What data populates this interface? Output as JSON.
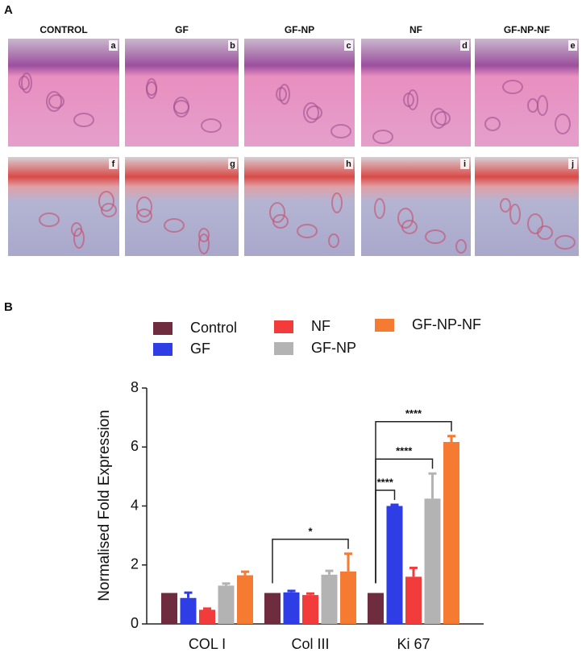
{
  "panel_labels": [
    "A",
    "B"
  ],
  "histology": {
    "columns": [
      "CONTROL",
      "GF",
      "GF-NP",
      "NF",
      "GF-NP-NF"
    ],
    "letters": [
      "a",
      "b",
      "c",
      "d",
      "e",
      "f",
      "g",
      "h",
      "i",
      "j"
    ]
  },
  "chart_data": {
    "type": "bar",
    "categories": [
      "COL I",
      "Col III",
      "Ki 67"
    ],
    "ylabel": "Normalised Fold Expression",
    "ylim": [
      0,
      8
    ],
    "yticks": [
      0,
      2,
      4,
      6,
      8
    ],
    "series": [
      {
        "name": "Control",
        "color": "#6e2c3e",
        "values": [
          1.05,
          1.05,
          1.05
        ]
      },
      {
        "name": "GF",
        "color": "#2e3de6",
        "values": [
          0.88,
          1.07,
          4.0
        ],
        "errors": [
          0.18,
          0.05,
          0.04
        ]
      },
      {
        "name": "NF",
        "color": "#f23c3c",
        "values": [
          0.48,
          0.98,
          1.6
        ],
        "errors": [
          0.04,
          0.05,
          0.3
        ]
      },
      {
        "name": "GF-NP",
        "color": "#b3b3b3",
        "values": [
          1.3,
          1.67,
          4.25
        ],
        "errors": [
          0.07,
          0.13,
          0.85
        ]
      },
      {
        "name": "GF-NP-NF",
        "color": "#f57a32",
        "values": [
          1.65,
          1.78,
          6.17
        ],
        "errors": [
          0.12,
          0.6,
          0.2
        ]
      }
    ],
    "annotations": [
      {
        "text": "*",
        "category": "Col III",
        "between": [
          "Control",
          "GF-NP-NF"
        ]
      },
      {
        "text": "****",
        "category": "Ki 67",
        "between": [
          "Control",
          "GF"
        ]
      },
      {
        "text": "****",
        "category": "Ki 67",
        "between": [
          "Control",
          "GF-NP"
        ]
      },
      {
        "text": "****",
        "category": "Ki 67",
        "between": [
          "Control",
          "GF-NP-NF"
        ]
      }
    ]
  }
}
